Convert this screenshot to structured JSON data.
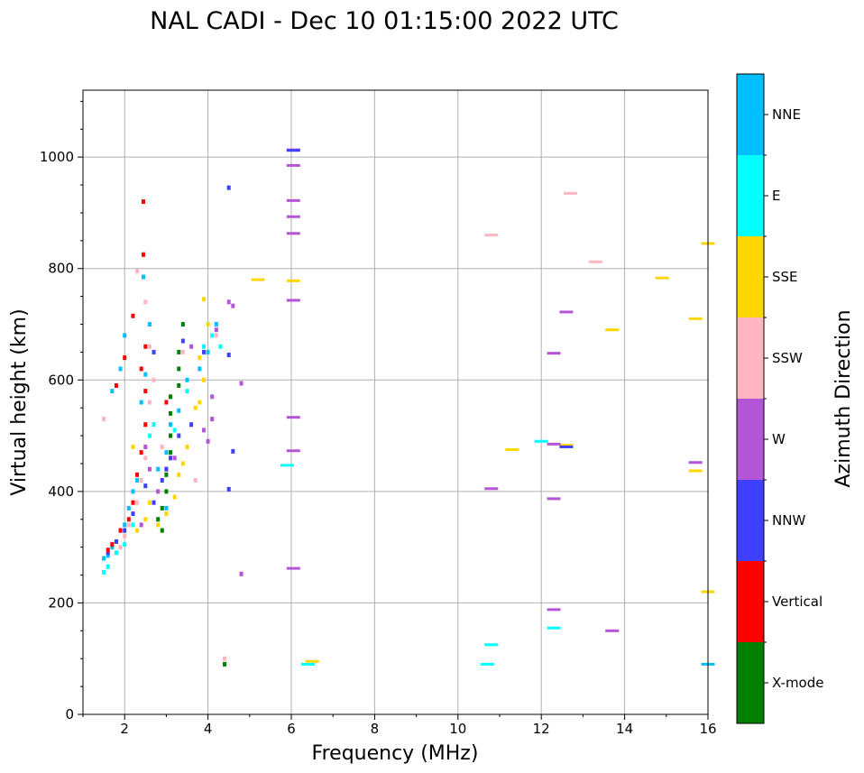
{
  "chart_data": {
    "type": "scatter",
    "title": "NAL CADI - Dec 10 01:15:00 2022 UTC",
    "xlabel": "Frequency (MHz)",
    "ylabel": "Virtual height (km)",
    "xlim": [
      1,
      16
    ],
    "ylim": [
      0,
      1120
    ],
    "xticks": [
      2,
      4,
      6,
      8,
      10,
      12,
      14,
      16
    ],
    "yticks": [
      0,
      200,
      400,
      600,
      800,
      1000
    ],
    "grid": true,
    "colorbar": {
      "label": "Azimuth Direction",
      "categories": [
        {
          "name": "X-mode",
          "color": "#008000"
        },
        {
          "name": "Vertical",
          "color": "#ff0000"
        },
        {
          "name": "NNW",
          "color": "#3f3fff"
        },
        {
          "name": "W",
          "color": "#b455d8"
        },
        {
          "name": "SSW",
          "color": "#ffb6c1"
        },
        {
          "name": "SSE",
          "color": "#ffd700"
        },
        {
          "name": "E",
          "color": "#00ffff"
        },
        {
          "name": "NNE",
          "color": "#00bfff"
        }
      ]
    },
    "series": [
      {
        "name": "NNE",
        "points": [
          [
            1.5,
            280
          ],
          [
            1.6,
            285
          ],
          [
            1.7,
            300
          ],
          [
            1.8,
            310
          ],
          [
            1.9,
            330
          ],
          [
            2.0,
            340
          ],
          [
            2.1,
            370
          ],
          [
            2.2,
            400
          ],
          [
            2.3,
            420
          ],
          [
            1.7,
            580
          ],
          [
            1.9,
            620
          ],
          [
            2.0,
            680
          ],
          [
            2.4,
            560
          ],
          [
            2.5,
            610
          ],
          [
            2.6,
            700
          ],
          [
            2.8,
            440
          ],
          [
            3.0,
            470
          ],
          [
            3.1,
            520
          ],
          [
            3.3,
            545
          ],
          [
            3.5,
            600
          ],
          [
            3.8,
            620
          ],
          [
            4.0,
            650
          ],
          [
            4.2,
            700
          ],
          [
            2.45,
            785
          ],
          [
            16.0,
            90
          ],
          [
            3.0,
            370
          ]
        ]
      },
      {
        "name": "E",
        "points": [
          [
            1.5,
            255
          ],
          [
            1.6,
            265
          ],
          [
            1.8,
            290
          ],
          [
            2.0,
            305
          ],
          [
            2.2,
            340
          ],
          [
            2.6,
            500
          ],
          [
            3.2,
            510
          ],
          [
            3.5,
            580
          ],
          [
            3.9,
            660
          ],
          [
            4.1,
            680
          ],
          [
            4.3,
            660
          ],
          [
            5.9,
            447
          ],
          [
            6.4,
            90
          ],
          [
            10.7,
            90
          ],
          [
            10.8,
            125
          ],
          [
            12.3,
            155
          ],
          [
            12.0,
            490
          ],
          [
            2.7,
            520
          ]
        ]
      },
      {
        "name": "SSE",
        "points": [
          [
            2.3,
            330
          ],
          [
            2.5,
            350
          ],
          [
            2.6,
            380
          ],
          [
            2.8,
            340
          ],
          [
            3.0,
            360
          ],
          [
            3.2,
            390
          ],
          [
            3.3,
            430
          ],
          [
            3.4,
            450
          ],
          [
            3.5,
            480
          ],
          [
            3.6,
            520
          ],
          [
            3.7,
            550
          ],
          [
            3.8,
            560
          ],
          [
            3.9,
            600
          ],
          [
            3.8,
            640
          ],
          [
            4.0,
            700
          ],
          [
            3.9,
            745
          ],
          [
            5.2,
            780
          ],
          [
            6.05,
            778
          ],
          [
            6.5,
            95
          ],
          [
            11.3,
            475
          ],
          [
            12.6,
            483
          ],
          [
            13.7,
            690
          ],
          [
            14.9,
            783
          ],
          [
            15.7,
            710
          ],
          [
            15.7,
            437
          ],
          [
            16.0,
            845
          ],
          [
            16.0,
            220
          ],
          [
            2.2,
            480
          ]
        ]
      },
      {
        "name": "SSW",
        "points": [
          [
            1.9,
            300
          ],
          [
            2.0,
            320
          ],
          [
            2.1,
            340
          ],
          [
            2.2,
            360
          ],
          [
            2.3,
            380
          ],
          [
            2.4,
            420
          ],
          [
            2.5,
            460
          ],
          [
            2.5,
            520
          ],
          [
            2.6,
            560
          ],
          [
            2.7,
            600
          ],
          [
            2.6,
            660
          ],
          [
            2.5,
            740
          ],
          [
            2.3,
            795
          ],
          [
            2.9,
            480
          ],
          [
            3.1,
            500
          ],
          [
            3.4,
            650
          ],
          [
            4.2,
            680
          ],
          [
            3.7,
            420
          ],
          [
            1.5,
            530
          ],
          [
            4.4,
            100
          ],
          [
            10.8,
            860
          ],
          [
            12.7,
            935
          ],
          [
            13.3,
            812
          ]
        ]
      },
      {
        "name": "W",
        "points": [
          [
            2.4,
            340
          ],
          [
            2.6,
            440
          ],
          [
            2.8,
            400
          ],
          [
            3.0,
            440
          ],
          [
            3.2,
            460
          ],
          [
            3.6,
            660
          ],
          [
            3.9,
            510
          ],
          [
            4.0,
            490
          ],
          [
            4.1,
            530
          ],
          [
            4.1,
            570
          ],
          [
            4.2,
            690
          ],
          [
            4.5,
            740
          ],
          [
            4.6,
            733
          ],
          [
            4.8,
            594
          ],
          [
            4.8,
            252
          ],
          [
            6.05,
            1013
          ],
          [
            6.05,
            985
          ],
          [
            6.05,
            922
          ],
          [
            6.05,
            893
          ],
          [
            6.05,
            863
          ],
          [
            6.05,
            743
          ],
          [
            6.05,
            533
          ],
          [
            6.05,
            473
          ],
          [
            6.05,
            262
          ],
          [
            10.8,
            405
          ],
          [
            12.3,
            188
          ],
          [
            12.3,
            387
          ],
          [
            12.3,
            485
          ],
          [
            12.3,
            648
          ],
          [
            12.6,
            722
          ],
          [
            13.7,
            150
          ],
          [
            15.7,
            452
          ],
          [
            2.5,
            480
          ]
        ]
      },
      {
        "name": "NNW",
        "points": [
          [
            1.6,
            290
          ],
          [
            1.8,
            310
          ],
          [
            2.0,
            330
          ],
          [
            2.2,
            360
          ],
          [
            2.5,
            410
          ],
          [
            2.7,
            380
          ],
          [
            2.9,
            420
          ],
          [
            3.0,
            440
          ],
          [
            3.1,
            460
          ],
          [
            3.3,
            500
          ],
          [
            3.6,
            520
          ],
          [
            3.9,
            650
          ],
          [
            4.5,
            945
          ],
          [
            4.5,
            645
          ],
          [
            4.6,
            472
          ],
          [
            4.5,
            404
          ],
          [
            6.05,
            1012
          ],
          [
            12.6,
            480
          ],
          [
            2.7,
            650
          ],
          [
            3.4,
            670
          ]
        ]
      },
      {
        "name": "Vertical",
        "points": [
          [
            1.6,
            295
          ],
          [
            1.7,
            305
          ],
          [
            1.9,
            330
          ],
          [
            2.1,
            350
          ],
          [
            2.2,
            380
          ],
          [
            2.3,
            430
          ],
          [
            2.4,
            470
          ],
          [
            2.5,
            520
          ],
          [
            2.5,
            580
          ],
          [
            2.4,
            620
          ],
          [
            2.5,
            660
          ],
          [
            2.2,
            715
          ],
          [
            2.45,
            825
          ],
          [
            2.45,
            920
          ],
          [
            1.8,
            590
          ],
          [
            3.0,
            560
          ],
          [
            2.0,
            640
          ]
        ]
      },
      {
        "name": "X-mode",
        "points": [
          [
            2.8,
            350
          ],
          [
            2.9,
            370
          ],
          [
            3.0,
            400
          ],
          [
            3.0,
            430
          ],
          [
            3.1,
            470
          ],
          [
            3.1,
            500
          ],
          [
            3.1,
            540
          ],
          [
            3.1,
            570
          ],
          [
            3.3,
            590
          ],
          [
            3.3,
            620
          ],
          [
            3.3,
            650
          ],
          [
            3.4,
            700
          ],
          [
            4.4,
            90
          ],
          [
            2.9,
            330
          ]
        ]
      }
    ]
  }
}
